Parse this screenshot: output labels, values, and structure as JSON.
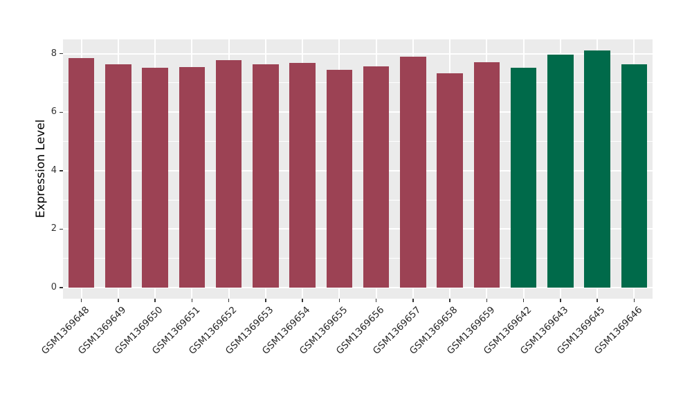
{
  "figure": {
    "background": "#FFFFFF",
    "panel_background": "#EBEBEB",
    "grid_color": "#FFFFFF",
    "tick_color": "#333333",
    "tick_label_color": "#333333",
    "x_label_color": "#262626",
    "axis_title_color": "#000000"
  },
  "chart_data": {
    "type": "bar",
    "title": "",
    "xlabel": "",
    "ylabel": "Expression Level",
    "categories": [
      "GSM1369648",
      "GSM1369649",
      "GSM1369650",
      "GSM1369651",
      "GSM1369652",
      "GSM1369653",
      "GSM1369654",
      "GSM1369655",
      "GSM1369656",
      "GSM1369657",
      "GSM1369658",
      "GSM1369659",
      "GSM1369642",
      "GSM1369643",
      "GSM1369645",
      "GSM1369646"
    ],
    "values": [
      7.84,
      7.64,
      7.51,
      7.54,
      7.78,
      7.64,
      7.69,
      7.45,
      7.56,
      7.9,
      7.33,
      7.7,
      7.51,
      7.97,
      8.11,
      7.64
    ],
    "bar_colors": [
      "#9C4254",
      "#9C4254",
      "#9C4254",
      "#9C4254",
      "#9C4254",
      "#9C4254",
      "#9C4254",
      "#9C4254",
      "#9C4254",
      "#9C4254",
      "#9C4254",
      "#9C4254",
      "#006A4A",
      "#006A4A",
      "#006A4A",
      "#006A4A"
    ],
    "groups": [
      {
        "name": "red-group",
        "color": "#9C4254",
        "members": [
          "GSM1369648",
          "GSM1369649",
          "GSM1369650",
          "GSM1369651",
          "GSM1369652",
          "GSM1369653",
          "GSM1369654",
          "GSM1369655",
          "GSM1369656",
          "GSM1369657",
          "GSM1369658",
          "GSM1369659"
        ]
      },
      {
        "name": "green-group",
        "color": "#006A4A",
        "members": [
          "GSM1369642",
          "GSM1369643",
          "GSM1369645",
          "GSM1369646"
        ]
      }
    ],
    "yticks": [
      0,
      2,
      4,
      6,
      8
    ],
    "yticks_minor": [
      1,
      3,
      5,
      7
    ],
    "ylim": [
      -0.38,
      8.49
    ],
    "grid": "horizontal major+minor, vertical major at category centers",
    "legend_position": "none"
  }
}
